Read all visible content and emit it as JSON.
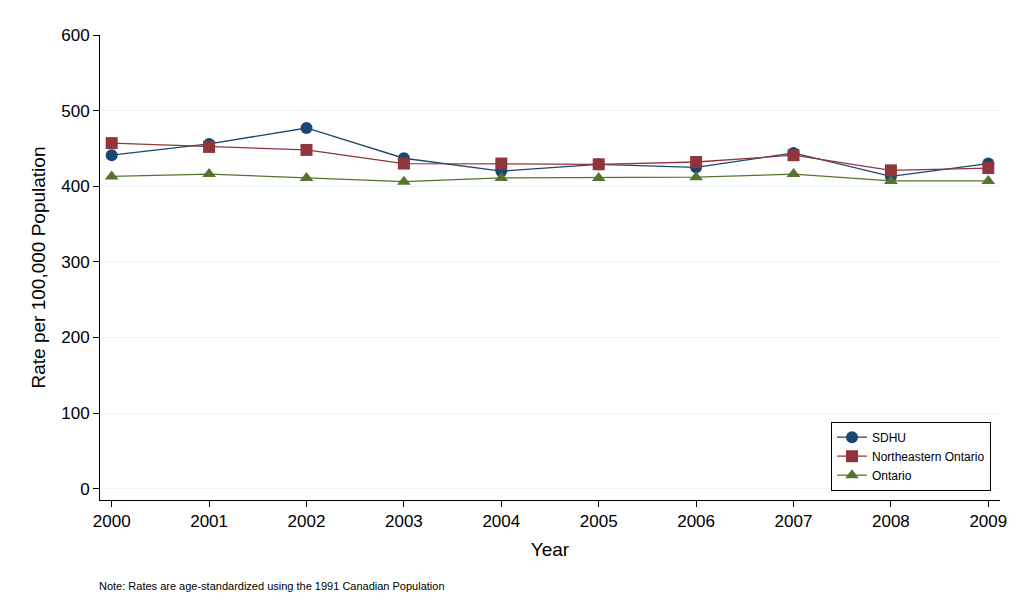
{
  "chart_data": {
    "type": "line",
    "x_label": "Year",
    "y_label": "Rate per 100,000 Population",
    "annotation": "Note: Rates are age-standardized using the 1991 Canadian Population",
    "x": [
      2000,
      2001,
      2002,
      2003,
      2004,
      2005,
      2006,
      2007,
      2008,
      2009
    ],
    "series": [
      {
        "name": "SDHU",
        "color": "#1a476f",
        "marker": "circle",
        "line_style": "solid",
        "values": [
          441,
          456,
          477,
          437,
          420,
          429,
          425,
          444,
          413,
          430
        ]
      },
      {
        "name": "Northeastern Ontario",
        "color": "#90353b",
        "marker": "square",
        "line_style": "solid",
        "values": [
          457,
          452,
          448,
          430,
          430,
          429,
          432,
          441,
          421,
          424
        ]
      },
      {
        "name": "Ontario",
        "color": "#55752f",
        "marker": "triangle-up",
        "line_style": "solid",
        "values": [
          413,
          416,
          411,
          406,
          411,
          411,
          412,
          416,
          407,
          407
        ]
      }
    ],
    "xlim": [
      1999.88,
      2009.12
    ],
    "xticks": [
      2000,
      2001,
      2002,
      2003,
      2004,
      2005,
      2006,
      2007,
      2008,
      2009
    ],
    "ylim": [
      -15,
      600
    ],
    "yticks": [
      0,
      100,
      200,
      300,
      400,
      500,
      600
    ],
    "grid": true,
    "legend": "bottom right"
  }
}
